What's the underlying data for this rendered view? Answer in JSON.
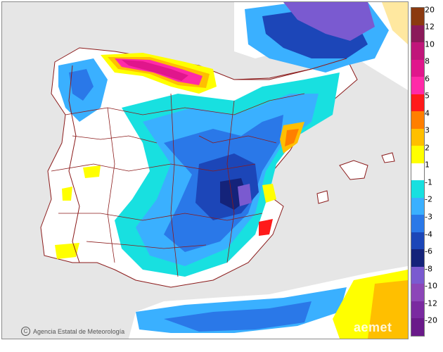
{
  "map": {
    "legend": {
      "labels": [
        "20",
        "12",
        "10",
        "8",
        "6",
        "5",
        "4",
        "3",
        "2",
        "1",
        "-1",
        "-2",
        "-3",
        "-4",
        "-6",
        "-8",
        "-10",
        "-12",
        "-20"
      ],
      "colors": [
        "#8b3a10",
        "#8b1a5a",
        "#c0167a",
        "#e0168c",
        "#ff2aa8",
        "#ff1a1a",
        "#ff7f00",
        "#ffbf00",
        "#ffff00",
        "#ffffff",
        "#18e0e0",
        "#3ab0ff",
        "#2a78e8",
        "#1c46b8",
        "#14237a",
        "#7a5ad0",
        "#8c46b8",
        "#7a2aa0",
        "#6a1a8a"
      ]
    },
    "credit": "Agencia Estatal de Meteorología",
    "watermark": "aemet"
  }
}
